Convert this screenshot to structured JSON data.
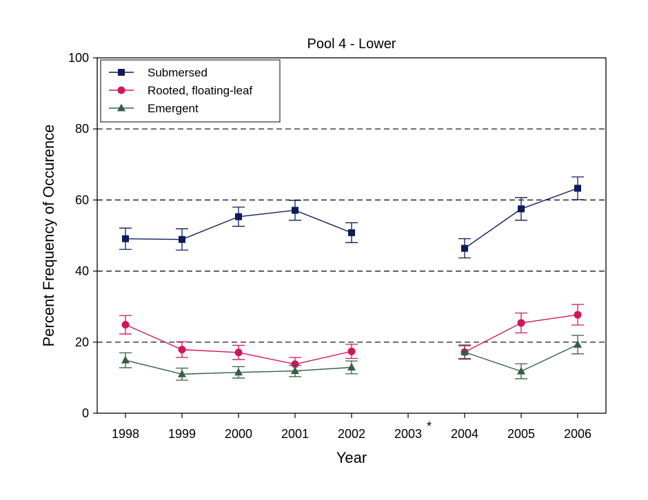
{
  "chart_data": {
    "type": "line",
    "title": "Pool 4 - Lower",
    "xlabel": "Year",
    "ylabel": "Percent Frequency of Occurence",
    "categories": [
      "1998",
      "1999",
      "2000",
      "2001",
      "2002",
      "2003",
      "2004",
      "2005",
      "2006"
    ],
    "category_marks": [
      "",
      "",
      "",
      "",
      "",
      "*",
      "",
      "",
      ""
    ],
    "ylim": [
      0,
      100
    ],
    "yticks": [
      "0",
      "20",
      "40",
      "60",
      "80",
      "100"
    ],
    "gridlines_y": [
      20,
      40,
      60,
      80
    ],
    "grid": "dashed horizontal",
    "legend_position": "top-left",
    "series": [
      {
        "name": "Submersed",
        "color": "#0d1a5c",
        "marker": "square",
        "values": [
          49.1,
          48.9,
          55.3,
          57.1,
          50.8,
          null,
          46.4,
          57.5,
          63.3
        ],
        "error": [
          3.0,
          3.0,
          2.7,
          2.8,
          2.8,
          null,
          2.7,
          3.2,
          3.2
        ]
      },
      {
        "name": "Rooted, floating-leaf",
        "color": "#d4145a",
        "marker": "circle",
        "values": [
          24.9,
          17.9,
          17.1,
          13.8,
          17.4,
          null,
          17.2,
          25.4,
          27.7
        ],
        "error": [
          2.6,
          2.2,
          2.0,
          1.9,
          2.0,
          null,
          2.0,
          2.8,
          2.9
        ]
      },
      {
        "name": "Emergent",
        "color": "#355e45",
        "marker": "triangle",
        "values": [
          14.9,
          11.0,
          11.5,
          11.9,
          12.9,
          null,
          17.2,
          11.8,
          19.3
        ],
        "error": [
          2.1,
          1.7,
          1.6,
          1.6,
          1.8,
          null,
          1.8,
          2.1,
          2.6
        ]
      }
    ]
  }
}
